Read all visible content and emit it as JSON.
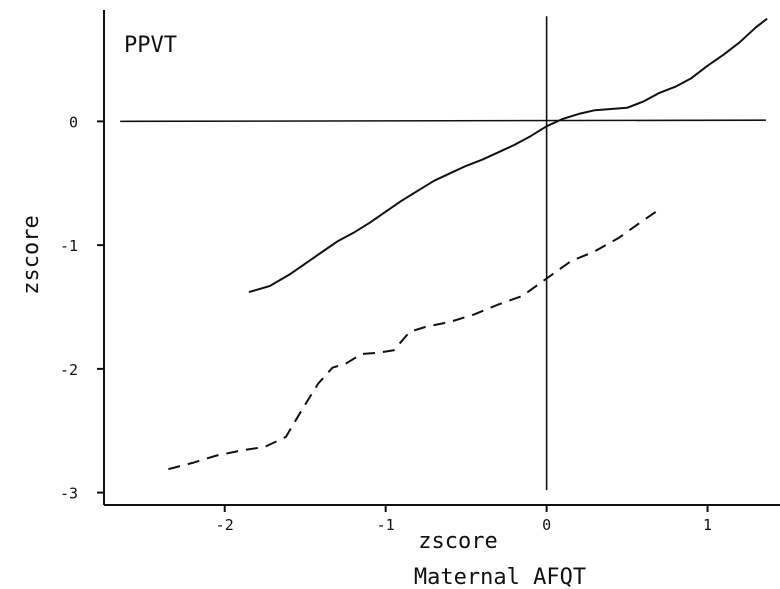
{
  "chart_data": {
    "type": "line",
    "title": "PPVT",
    "xlabel": "zscore",
    "xlabel2": "Maternal AFQT",
    "ylabel": "zscore",
    "xlim": [
      -2.75,
      1.45
    ],
    "ylim": [
      -3.1,
      0.9
    ],
    "xticks": [
      -2,
      -1,
      0,
      1
    ],
    "yticks": [
      0,
      -1,
      -2,
      -3
    ],
    "xtick_labels": [
      "-2",
      "-1",
      "0",
      "1"
    ],
    "ytick_labels": [
      "0",
      "-1",
      "-2",
      "-3"
    ],
    "reference_lines": {
      "x": 0,
      "y": 0
    },
    "grid": false,
    "series": [
      {
        "style": "solid",
        "x": [
          -1.85,
          -1.72,
          -1.6,
          -1.5,
          -1.4,
          -1.3,
          -1.2,
          -1.1,
          -1.0,
          -0.9,
          -0.8,
          -0.7,
          -0.6,
          -0.5,
          -0.4,
          -0.3,
          -0.2,
          -0.1,
          0.0,
          0.1,
          0.2,
          0.3,
          0.4,
          0.5,
          0.6,
          0.7,
          0.8,
          0.9,
          1.0,
          1.1,
          1.2,
          1.3,
          1.37
        ],
        "y": [
          -1.38,
          -1.33,
          -1.24,
          -1.15,
          -1.06,
          -0.97,
          -0.9,
          -0.82,
          -0.73,
          -0.64,
          -0.56,
          -0.48,
          -0.42,
          -0.36,
          -0.31,
          -0.25,
          -0.19,
          -0.12,
          -0.04,
          0.02,
          0.06,
          0.09,
          0.1,
          0.11,
          0.16,
          0.23,
          0.28,
          0.35,
          0.45,
          0.54,
          0.64,
          0.76,
          0.83
        ]
      },
      {
        "style": "dashed",
        "x": [
          -2.35,
          -2.2,
          -2.05,
          -1.9,
          -1.75,
          -1.62,
          -1.52,
          -1.42,
          -1.33,
          -1.25,
          -1.15,
          -1.05,
          -0.95,
          -0.85,
          -0.75,
          -0.6,
          -0.45,
          -0.3,
          -0.15,
          0.0,
          0.15,
          0.3,
          0.45,
          0.6,
          0.68
        ],
        "y": [
          -2.81,
          -2.76,
          -2.7,
          -2.66,
          -2.63,
          -2.55,
          -2.33,
          -2.12,
          -1.99,
          -1.96,
          -1.88,
          -1.87,
          -1.85,
          -1.7,
          -1.66,
          -1.62,
          -1.56,
          -1.48,
          -1.41,
          -1.27,
          -1.13,
          -1.05,
          -0.94,
          -0.8,
          -0.73
        ]
      }
    ]
  }
}
